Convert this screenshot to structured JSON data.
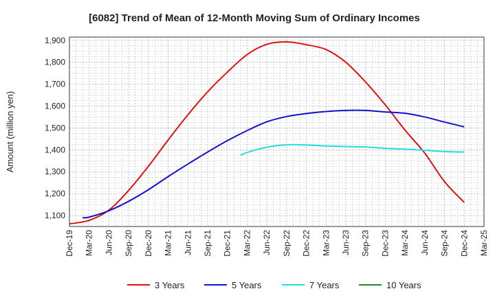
{
  "chart_data": {
    "type": "line",
    "title": "[6082]  Trend of Mean of 12-Month Moving Sum of Ordinary Incomes",
    "xlabel": "",
    "ylabel": "Amount (million yen)",
    "ylim": [
      1050,
      1915
    ],
    "yticks": [
      1100,
      1200,
      1300,
      1400,
      1500,
      1600,
      1700,
      1800,
      1900
    ],
    "ytick_labels": [
      "1,100",
      "1,200",
      "1,300",
      "1,400",
      "1,500",
      "1,600",
      "1,700",
      "1,800",
      "1,900"
    ],
    "xticks": [
      "Dec-19",
      "Mar-20",
      "Jun-20",
      "Sep-20",
      "Dec-20",
      "Mar-21",
      "Jun-21",
      "Sep-21",
      "Dec-21",
      "Mar-22",
      "Jun-22",
      "Sep-22",
      "Dec-22",
      "Mar-23",
      "Jun-23",
      "Sep-23",
      "Dec-23",
      "Mar-24",
      "Jun-24",
      "Sep-24",
      "Dec-24",
      "Mar-25"
    ],
    "grid": true,
    "series": [
      {
        "name": "3 Years",
        "color": "#dd1111",
        "x": [
          0,
          1,
          2,
          3,
          4,
          5,
          6,
          7,
          8,
          9,
          10,
          11,
          12,
          13,
          14,
          15,
          16,
          17,
          18,
          19,
          20
        ],
        "values": [
          1062,
          1078,
          1125,
          1215,
          1325,
          1445,
          1560,
          1665,
          1755,
          1835,
          1882,
          1893,
          1880,
          1858,
          1800,
          1710,
          1605,
          1490,
          1385,
          1255,
          1160
        ]
      },
      {
        "name": "5 Years",
        "color": "#1111cc",
        "x": [
          0.667,
          1,
          2,
          3,
          4,
          5,
          6,
          7,
          8,
          9,
          10,
          11,
          12,
          13,
          14,
          15,
          16,
          17,
          18,
          19,
          20
        ],
        "values": [
          1090,
          1093,
          1122,
          1165,
          1218,
          1278,
          1335,
          1390,
          1442,
          1488,
          1528,
          1552,
          1566,
          1575,
          1580,
          1580,
          1573,
          1567,
          1550,
          1527,
          1505
        ]
      },
      {
        "name": "7 Years",
        "color": "#22dddd",
        "x": [
          8.667,
          9,
          10,
          11,
          12,
          13,
          14,
          15,
          16,
          17,
          18,
          19,
          20
        ],
        "values": [
          1375,
          1388,
          1412,
          1423,
          1422,
          1418,
          1415,
          1413,
          1407,
          1403,
          1398,
          1392,
          1390
        ]
      },
      {
        "name": "10 Years",
        "color": "#228822",
        "x": [],
        "values": []
      }
    ]
  }
}
